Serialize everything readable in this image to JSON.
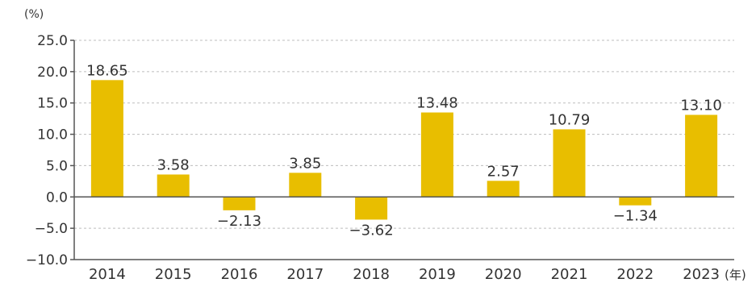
{
  "chart_data": {
    "type": "bar",
    "title": "",
    "xlabel": "",
    "ylabel": "",
    "y_unit_label": "(%)",
    "x_unit_label": "(年)",
    "categories": [
      "2014",
      "2015",
      "2016",
      "2017",
      "2018",
      "2019",
      "2020",
      "2021",
      "2022",
      "2023"
    ],
    "values": [
      18.65,
      3.58,
      -2.13,
      3.85,
      -3.62,
      13.48,
      2.57,
      10.79,
      -1.34,
      13.1
    ],
    "value_labels": [
      "18.65",
      "3.58",
      "−2.13",
      "3.85",
      "−3.62",
      "13.48",
      "2.57",
      "10.79",
      "−1.34",
      "13.10"
    ],
    "ylim": [
      -10.0,
      25.0
    ],
    "yticks": [
      25.0,
      20.0,
      15.0,
      10.0,
      5.0,
      0.0,
      -5.0,
      -10.0
    ],
    "ytick_labels": [
      "25.0",
      "20.0",
      "15.0",
      "10.0",
      "5.0",
      "0.0",
      "−5.0",
      "−10.0"
    ],
    "grid": "dashed horizontal",
    "legend": "none",
    "colors": {
      "bar": "#E8BE00",
      "axis": "#555555",
      "grid": "#bdbdbd",
      "text": "#333333"
    }
  }
}
